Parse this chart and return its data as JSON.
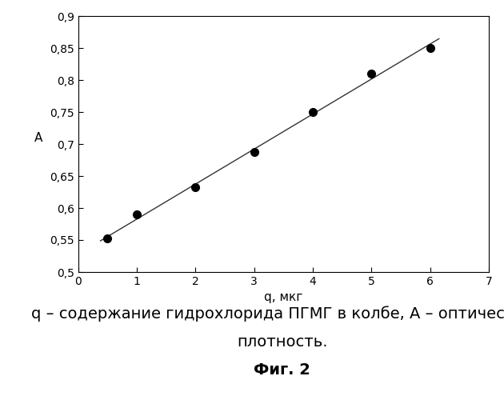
{
  "x_data": [
    0.5,
    1.0,
    2.0,
    3.0,
    4.0,
    5.0,
    6.0
  ],
  "y_data": [
    0.552,
    0.59,
    0.632,
    0.688,
    0.75,
    0.81,
    0.85
  ],
  "xlabel": "q, мкг",
  "ylabel": "А",
  "xlim": [
    0,
    7
  ],
  "ylim": [
    0.5,
    0.9
  ],
  "xticks": [
    0,
    1,
    2,
    3,
    4,
    5,
    6,
    7
  ],
  "yticks": [
    0.5,
    0.55,
    0.6,
    0.65,
    0.7,
    0.75,
    0.8,
    0.85,
    0.9
  ],
  "ytick_labels": [
    "0,5",
    "0,55",
    "0,6",
    "0,65",
    "0,7",
    "0,75",
    "0,8",
    "0,85",
    "0,9"
  ],
  "xtick_labels": [
    "0",
    "1",
    "2",
    "3",
    "4",
    "5",
    "6",
    "7"
  ],
  "caption_line1": "q – содержание гидрохлорида ПГМГ в колбе, A – оптическая",
  "caption_line2": "плотность.",
  "caption_line3": "Фиг. 2",
  "dot_color": "#000000",
  "line_color": "#333333",
  "bg_color": "#ffffff",
  "marker_size": 7,
  "line_width": 1.0,
  "tick_fontsize": 10,
  "label_fontsize": 11,
  "caption_fontsize": 14,
  "fig_caption_fontsize": 14
}
